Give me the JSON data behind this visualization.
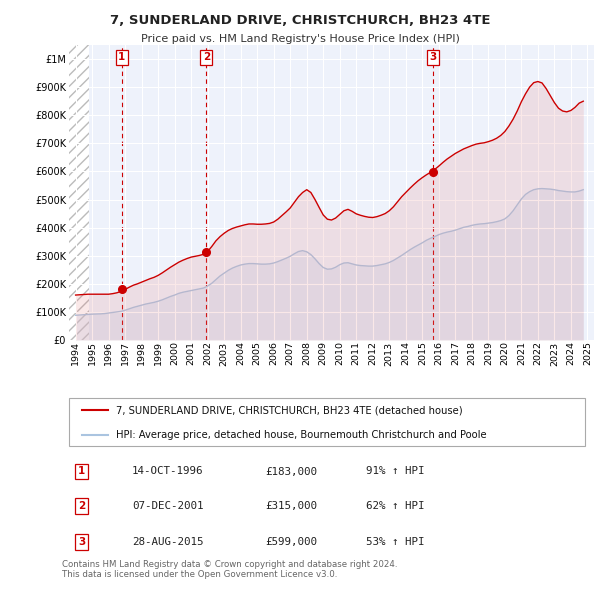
{
  "title": "7, SUNDERLAND DRIVE, CHRISTCHURCH, BH23 4TE",
  "subtitle": "Price paid vs. HM Land Registry's House Price Index (HPI)",
  "background_color": "#ffffff",
  "chart_bg_color": "#eef2fb",
  "grid_color": "#ffffff",
  "hatch_color": "#cccccc",
  "ylim": [
    0,
    1050000
  ],
  "yticks": [
    0,
    100000,
    200000,
    300000,
    400000,
    500000,
    600000,
    700000,
    800000,
    900000,
    1000000
  ],
  "ytick_labels": [
    "£0",
    "£100K",
    "£200K",
    "£300K",
    "£400K",
    "£500K",
    "£600K",
    "£700K",
    "£800K",
    "£900K",
    "£1M"
  ],
  "xlim_start": 1993.6,
  "xlim_end": 2025.4,
  "hatch_end": 1994.83,
  "xticks": [
    1994,
    1995,
    1996,
    1997,
    1998,
    1999,
    2000,
    2001,
    2002,
    2003,
    2004,
    2005,
    2006,
    2007,
    2008,
    2009,
    2010,
    2011,
    2012,
    2013,
    2014,
    2015,
    2016,
    2017,
    2018,
    2019,
    2020,
    2021,
    2022,
    2023,
    2024,
    2025
  ],
  "hpi_color": "#aac4e0",
  "hpi_fill_color": "#c8d8ee",
  "price_color": "#cc0000",
  "price_fill_color": "#e88080",
  "sale_marker_color": "#cc0000",
  "sale_dates": [
    1996.79,
    2001.92,
    2015.65
  ],
  "sale_prices": [
    183000,
    315000,
    599000
  ],
  "sale_labels": [
    "1",
    "2",
    "3"
  ],
  "vline_color": "#cc0000",
  "legend_line1": "7, SUNDERLAND DRIVE, CHRISTCHURCH, BH23 4TE (detached house)",
  "legend_line2": "HPI: Average price, detached house, Bournemouth Christchurch and Poole",
  "table_rows": [
    [
      "1",
      "14-OCT-1996",
      "£183,000",
      "91% ↑ HPI"
    ],
    [
      "2",
      "07-DEC-2001",
      "£315,000",
      "62% ↑ HPI"
    ],
    [
      "3",
      "28-AUG-2015",
      "£599,000",
      "53% ↑ HPI"
    ]
  ],
  "footer_text": "Contains HM Land Registry data © Crown copyright and database right 2024.\nThis data is licensed under the Open Government Licence v3.0.",
  "hpi_data_x": [
    1994.0,
    1994.25,
    1994.5,
    1994.75,
    1995.0,
    1995.25,
    1995.5,
    1995.75,
    1996.0,
    1996.25,
    1996.5,
    1996.75,
    1997.0,
    1997.25,
    1997.5,
    1997.75,
    1998.0,
    1998.25,
    1998.5,
    1998.75,
    1999.0,
    1999.25,
    1999.5,
    1999.75,
    2000.0,
    2000.25,
    2000.5,
    2000.75,
    2001.0,
    2001.25,
    2001.5,
    2001.75,
    2002.0,
    2002.25,
    2002.5,
    2002.75,
    2003.0,
    2003.25,
    2003.5,
    2003.75,
    2004.0,
    2004.25,
    2004.5,
    2004.75,
    2005.0,
    2005.25,
    2005.5,
    2005.75,
    2006.0,
    2006.25,
    2006.5,
    2006.75,
    2007.0,
    2007.25,
    2007.5,
    2007.75,
    2008.0,
    2008.25,
    2008.5,
    2008.75,
    2009.0,
    2009.25,
    2009.5,
    2009.75,
    2010.0,
    2010.25,
    2010.5,
    2010.75,
    2011.0,
    2011.25,
    2011.5,
    2011.75,
    2012.0,
    2012.25,
    2012.5,
    2012.75,
    2013.0,
    2013.25,
    2013.5,
    2013.75,
    2014.0,
    2014.25,
    2014.5,
    2014.75,
    2015.0,
    2015.25,
    2015.5,
    2015.75,
    2016.0,
    2016.25,
    2016.5,
    2016.75,
    2017.0,
    2017.25,
    2017.5,
    2017.75,
    2018.0,
    2018.25,
    2018.5,
    2018.75,
    2019.0,
    2019.25,
    2019.5,
    2019.75,
    2020.0,
    2020.25,
    2020.5,
    2020.75,
    2021.0,
    2021.25,
    2021.5,
    2021.75,
    2022.0,
    2022.25,
    2022.5,
    2022.75,
    2023.0,
    2023.25,
    2023.5,
    2023.75,
    2024.0,
    2024.25,
    2024.5,
    2024.75
  ],
  "hpi_data_y": [
    88000,
    89000,
    90000,
    91000,
    92000,
    92500,
    93000,
    94000,
    96000,
    98000,
    100000,
    102000,
    106000,
    111000,
    116000,
    120000,
    124000,
    128000,
    131000,
    134000,
    138000,
    143000,
    149000,
    155000,
    160000,
    166000,
    170000,
    173000,
    176000,
    179000,
    182000,
    185000,
    192000,
    202000,
    215000,
    228000,
    238000,
    248000,
    256000,
    262000,
    267000,
    270000,
    272000,
    272000,
    271000,
    270000,
    270000,
    271000,
    274000,
    279000,
    285000,
    291000,
    298000,
    307000,
    315000,
    318000,
    314000,
    304000,
    289000,
    272000,
    258000,
    252000,
    253000,
    259000,
    268000,
    274000,
    275000,
    271000,
    267000,
    265000,
    264000,
    263000,
    263000,
    265000,
    268000,
    271000,
    276000,
    283000,
    292000,
    301000,
    311000,
    321000,
    330000,
    338000,
    346000,
    355000,
    362000,
    368000,
    375000,
    380000,
    384000,
    387000,
    391000,
    396000,
    401000,
    404000,
    408000,
    411000,
    413000,
    414000,
    416000,
    418000,
    421000,
    425000,
    431000,
    443000,
    460000,
    481000,
    502000,
    518000,
    528000,
    535000,
    538000,
    539000,
    538000,
    537000,
    535000,
    532000,
    530000,
    528000,
    527000,
    527000,
    530000,
    535000
  ],
  "price_data_x": [
    1994.0,
    1994.25,
    1994.5,
    1994.75,
    1995.0,
    1995.25,
    1995.5,
    1995.75,
    1996.0,
    1996.25,
    1996.5,
    1996.75,
    1997.0,
    1997.25,
    1997.5,
    1997.75,
    1998.0,
    1998.25,
    1998.5,
    1998.75,
    1999.0,
    1999.25,
    1999.5,
    1999.75,
    2000.0,
    2000.25,
    2000.5,
    2000.75,
    2001.0,
    2001.25,
    2001.5,
    2001.75,
    2002.0,
    2002.25,
    2002.5,
    2002.75,
    2003.0,
    2003.25,
    2003.5,
    2003.75,
    2004.0,
    2004.25,
    2004.5,
    2004.75,
    2005.0,
    2005.25,
    2005.5,
    2005.75,
    2006.0,
    2006.25,
    2006.5,
    2006.75,
    2007.0,
    2007.25,
    2007.5,
    2007.75,
    2008.0,
    2008.25,
    2008.5,
    2008.75,
    2009.0,
    2009.25,
    2009.5,
    2009.75,
    2010.0,
    2010.25,
    2010.5,
    2010.75,
    2011.0,
    2011.25,
    2011.5,
    2011.75,
    2012.0,
    2012.25,
    2012.5,
    2012.75,
    2013.0,
    2013.25,
    2013.5,
    2013.75,
    2014.0,
    2014.25,
    2014.5,
    2014.75,
    2015.0,
    2015.25,
    2015.5,
    2015.75,
    2016.0,
    2016.25,
    2016.5,
    2016.75,
    2017.0,
    2017.25,
    2017.5,
    2017.75,
    2018.0,
    2018.25,
    2018.5,
    2018.75,
    2019.0,
    2019.25,
    2019.5,
    2019.75,
    2020.0,
    2020.25,
    2020.5,
    2020.75,
    2021.0,
    2021.25,
    2021.5,
    2021.75,
    2022.0,
    2022.25,
    2022.5,
    2022.75,
    2023.0,
    2023.25,
    2023.5,
    2023.75,
    2024.0,
    2024.25,
    2024.5,
    2024.75
  ],
  "price_data_y": [
    160000,
    161000,
    162000,
    163000,
    163000,
    163000,
    163000,
    163000,
    163000,
    165000,
    168000,
    173000,
    180000,
    188000,
    195000,
    200000,
    206000,
    212000,
    218000,
    223000,
    230000,
    239000,
    249000,
    259000,
    268000,
    277000,
    284000,
    290000,
    295000,
    298000,
    301000,
    305000,
    315000,
    333000,
    353000,
    368000,
    380000,
    390000,
    397000,
    402000,
    406000,
    410000,
    413000,
    413000,
    412000,
    412000,
    413000,
    415000,
    420000,
    430000,
    443000,
    456000,
    470000,
    490000,
    510000,
    525000,
    535000,
    525000,
    500000,
    472000,
    445000,
    430000,
    427000,
    434000,
    447000,
    460000,
    465000,
    458000,
    449000,
    444000,
    440000,
    437000,
    436000,
    439000,
    444000,
    450000,
    460000,
    474000,
    492000,
    510000,
    525000,
    540000,
    554000,
    567000,
    578000,
    588000,
    597000,
    607000,
    619000,
    632000,
    644000,
    654000,
    664000,
    672000,
    680000,
    686000,
    692000,
    697000,
    700000,
    702000,
    706000,
    711000,
    718000,
    728000,
    742000,
    762000,
    786000,
    815000,
    848000,
    876000,
    900000,
    916000,
    920000,
    915000,
    895000,
    870000,
    845000,
    825000,
    815000,
    812000,
    817000,
    828000,
    843000,
    850000
  ]
}
